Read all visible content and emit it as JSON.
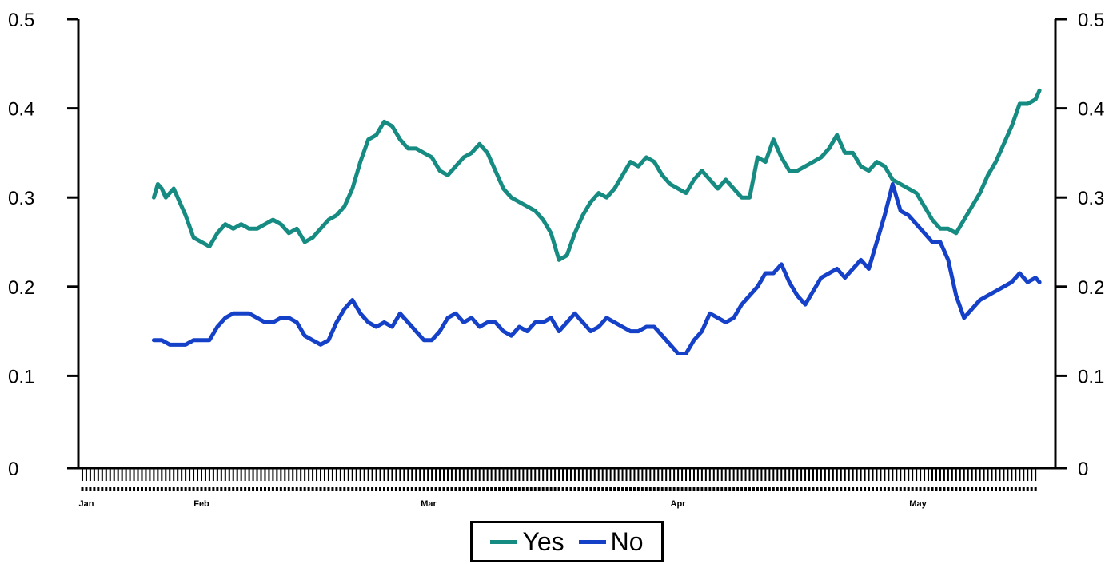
{
  "chart_data": {
    "type": "line",
    "title": "",
    "xlabel": "",
    "ylabel": "",
    "ylim": [
      0,
      0.5
    ],
    "y_ticks": [
      "0",
      "0.1",
      "0.2",
      "0.3",
      "0.4",
      "0.5"
    ],
    "secondary_y_axis": true,
    "grid": false,
    "legend_position": "bottom-center",
    "month_labels": [
      "Jan",
      "Feb",
      "Mar",
      "Apr",
      "May"
    ],
    "x_note": "x = day index starting at first tick (Jan)",
    "series": [
      {
        "name": "Yes",
        "color": "#168b82",
        "x": [
          19,
          20,
          21,
          22,
          23,
          24,
          25,
          27,
          29,
          31,
          33,
          35,
          37,
          39,
          41,
          43,
          45,
          47,
          49,
          51,
          53,
          55,
          57,
          59,
          61,
          63,
          65,
          67,
          69,
          71,
          73,
          75,
          77,
          79,
          81,
          83,
          85,
          87,
          89,
          91,
          93,
          95,
          97,
          99,
          101,
          103,
          105,
          107,
          109,
          111,
          113,
          115,
          117,
          119,
          121,
          123,
          125,
          127,
          129,
          131,
          133,
          135,
          137,
          139,
          141,
          143,
          145,
          147,
          149,
          151,
          153,
          155,
          157,
          159,
          161,
          163,
          165,
          167,
          169,
          171,
          173,
          175,
          177,
          179,
          181,
          183,
          185,
          187,
          189,
          191,
          193,
          195,
          197,
          199,
          201,
          203,
          205,
          207,
          209,
          211,
          213,
          215,
          217,
          219,
          221,
          223,
          225,
          227,
          229,
          231,
          233,
          235,
          237,
          239,
          241,
          242
        ],
        "values": [
          0.3,
          0.315,
          0.31,
          0.3,
          0.305,
          0.31,
          0.3,
          0.28,
          0.255,
          0.25,
          0.245,
          0.26,
          0.27,
          0.265,
          0.27,
          0.265,
          0.265,
          0.27,
          0.275,
          0.27,
          0.26,
          0.265,
          0.25,
          0.255,
          0.265,
          0.275,
          0.28,
          0.29,
          0.31,
          0.34,
          0.365,
          0.37,
          0.385,
          0.38,
          0.365,
          0.355,
          0.355,
          0.35,
          0.345,
          0.33,
          0.325,
          0.335,
          0.345,
          0.35,
          0.36,
          0.35,
          0.33,
          0.31,
          0.3,
          0.295,
          0.29,
          0.285,
          0.275,
          0.26,
          0.23,
          0.235,
          0.26,
          0.28,
          0.295,
          0.305,
          0.3,
          0.31,
          0.325,
          0.34,
          0.335,
          0.345,
          0.34,
          0.325,
          0.315,
          0.31,
          0.305,
          0.32,
          0.33,
          0.32,
          0.31,
          0.32,
          0.31,
          0.3,
          0.3,
          0.345,
          0.34,
          0.365,
          0.345,
          0.33,
          0.33,
          0.335,
          0.34,
          0.345,
          0.355,
          0.37,
          0.35,
          0.35,
          0.335,
          0.33,
          0.34,
          0.335,
          0.32,
          0.315,
          0.31,
          0.305,
          0.29,
          0.275,
          0.265,
          0.265,
          0.26,
          0.275,
          0.29,
          0.305,
          0.325,
          0.34,
          0.36,
          0.38,
          0.405,
          0.405,
          0.41,
          0.42
        ]
      },
      {
        "name": "No",
        "color": "#1540c8",
        "x": [
          19,
          21,
          23,
          25,
          27,
          29,
          31,
          33,
          35,
          37,
          39,
          41,
          43,
          45,
          47,
          49,
          51,
          53,
          55,
          57,
          59,
          61,
          63,
          65,
          67,
          69,
          71,
          73,
          75,
          77,
          79,
          81,
          83,
          85,
          87,
          89,
          91,
          93,
          95,
          97,
          99,
          101,
          103,
          105,
          107,
          109,
          111,
          113,
          115,
          117,
          119,
          121,
          123,
          125,
          127,
          129,
          131,
          133,
          135,
          137,
          139,
          141,
          143,
          145,
          147,
          149,
          151,
          153,
          155,
          157,
          159,
          161,
          163,
          165,
          167,
          169,
          171,
          173,
          175,
          177,
          179,
          181,
          183,
          185,
          187,
          189,
          191,
          193,
          195,
          197,
          199,
          201,
          203,
          205,
          207,
          209,
          211,
          213,
          215,
          217,
          219,
          221,
          223,
          225,
          227,
          229,
          231,
          233,
          235,
          237,
          239,
          241,
          242
        ],
        "values": [
          0.14,
          0.14,
          0.135,
          0.135,
          0.135,
          0.14,
          0.14,
          0.14,
          0.155,
          0.165,
          0.17,
          0.17,
          0.17,
          0.165,
          0.16,
          0.16,
          0.165,
          0.165,
          0.16,
          0.145,
          0.14,
          0.135,
          0.14,
          0.16,
          0.175,
          0.185,
          0.17,
          0.16,
          0.155,
          0.16,
          0.155,
          0.17,
          0.16,
          0.15,
          0.14,
          0.14,
          0.15,
          0.165,
          0.17,
          0.16,
          0.165,
          0.155,
          0.16,
          0.16,
          0.15,
          0.145,
          0.155,
          0.15,
          0.16,
          0.16,
          0.165,
          0.15,
          0.16,
          0.17,
          0.16,
          0.15,
          0.155,
          0.165,
          0.16,
          0.155,
          0.15,
          0.15,
          0.155,
          0.155,
          0.145,
          0.135,
          0.125,
          0.125,
          0.14,
          0.15,
          0.17,
          0.165,
          0.16,
          0.165,
          0.18,
          0.19,
          0.2,
          0.215,
          0.215,
          0.225,
          0.205,
          0.19,
          0.18,
          0.195,
          0.21,
          0.215,
          0.22,
          0.21,
          0.22,
          0.23,
          0.22,
          0.25,
          0.28,
          0.315,
          0.285,
          0.28,
          0.27,
          0.26,
          0.25,
          0.25,
          0.23,
          0.19,
          0.165,
          0.175,
          0.185,
          0.19,
          0.195,
          0.2,
          0.205,
          0.215,
          0.205,
          0.21,
          0.205
        ]
      }
    ]
  }
}
